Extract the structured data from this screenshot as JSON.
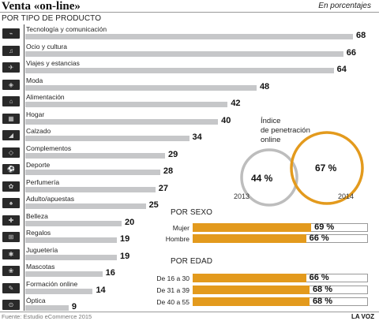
{
  "header": {
    "title": "Venta «on-line»",
    "units": "En porcentajes"
  },
  "sections": {
    "by_product": "POR TIPO DE PRODUCTO",
    "by_sex": "POR SEXO",
    "by_age": "POR EDAD"
  },
  "chart_data": [
    {
      "type": "bar",
      "title": "POR TIPO DE PRODUCTO",
      "categories": [
        "Tecnología y comunicación",
        "Ocio y cultura",
        "Viajes y estancias",
        "Moda",
        "Alimentación",
        "Hogar",
        "Calzado",
        "Complementos",
        "Deporte",
        "Perfumería",
        "Adulto/apuestas",
        "Belleza",
        "Regalos",
        "Juguetería",
        "Mascotas",
        "Formación online",
        "Óptica"
      ],
      "values": [
        68,
        66,
        64,
        48,
        42,
        40,
        34,
        29,
        28,
        27,
        25,
        20,
        19,
        19,
        16,
        14,
        9
      ],
      "xlim": [
        0,
        68
      ],
      "colors": {
        "bar": "#c6c7c9"
      },
      "icons": [
        "tech-icon",
        "leisure-icon",
        "plane-icon",
        "fashion-icon",
        "shopping-cart-icon",
        "home-icon",
        "shoe-icon",
        "accessory-icon",
        "sport-icon",
        "perfume-icon",
        "cards-icon",
        "beauty-icon",
        "gift-icon",
        "toy-icon",
        "pet-icon",
        "education-icon",
        "glasses-icon"
      ]
    },
    {
      "type": "bar",
      "title": "POR SEXO",
      "categories": [
        "Mujer",
        "Hombre"
      ],
      "values": [
        69,
        66
      ],
      "xlim": [
        0,
        100
      ],
      "colors": {
        "bar": "#e39a1d"
      }
    },
    {
      "type": "bar",
      "title": "POR EDAD",
      "categories": [
        "De 16 a 30",
        "De 31 a 39",
        "De 40 a 55"
      ],
      "values": [
        66,
        68,
        68
      ],
      "xlim": [
        0,
        100
      ],
      "colors": {
        "bar": "#e39a1d"
      }
    }
  ],
  "penetration": {
    "title_lines": [
      "Índice",
      "de penetración",
      "online"
    ],
    "rings": [
      {
        "year": "2013",
        "value_label": "44 %",
        "color": "#bdbdbd"
      },
      {
        "year": "2014",
        "value_label": "67 %",
        "color": "#e39a1d"
      }
    ]
  },
  "footer": {
    "source": "Fuente: Estudio eCommerce 2015",
    "brand": "LA VOZ"
  }
}
